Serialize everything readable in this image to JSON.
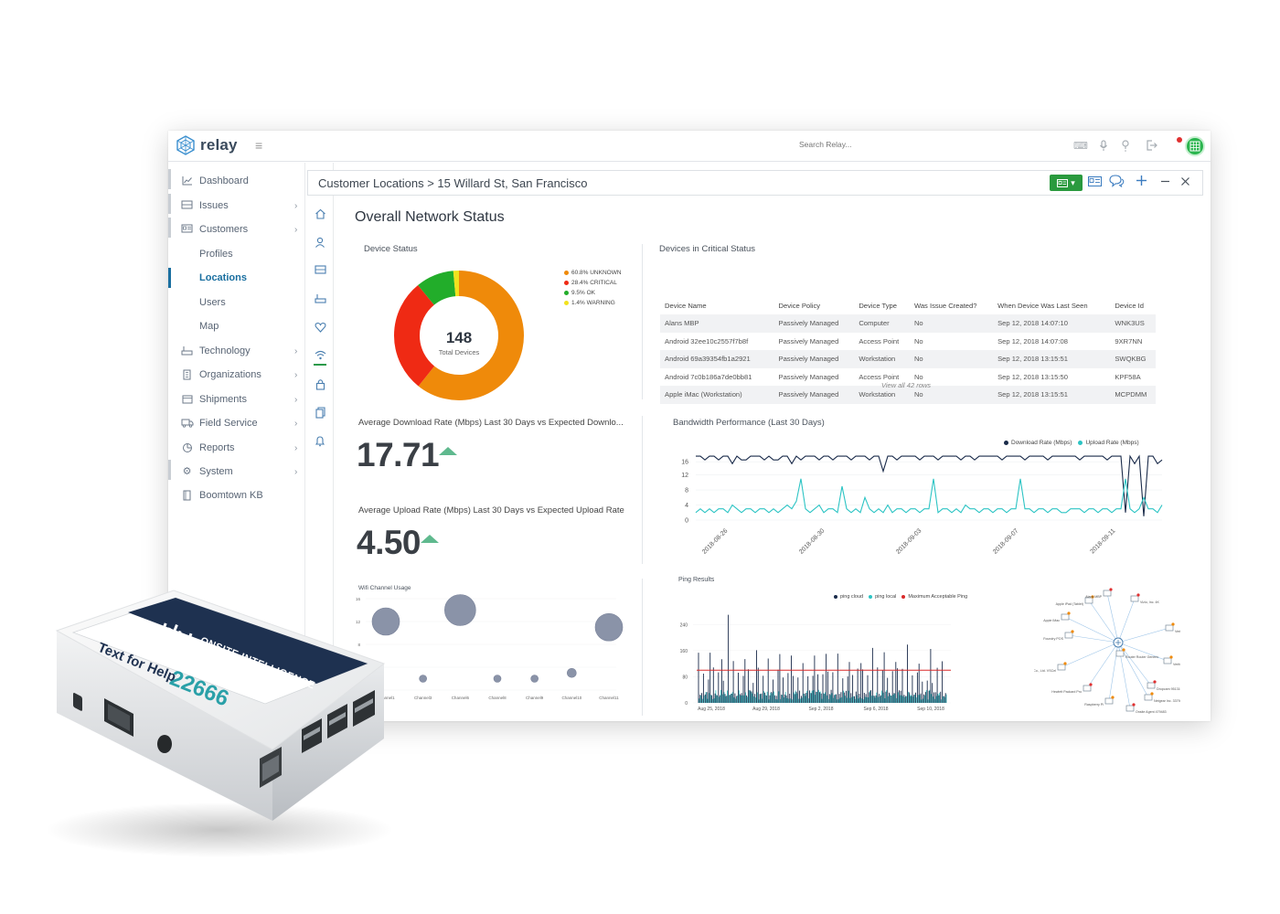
{
  "app": {
    "logo": "relay",
    "search_placeholder": "Search Relay..."
  },
  "sidebar": {
    "items": [
      {
        "label": "Dashboard",
        "icon": "chart-icon"
      },
      {
        "label": "Issues",
        "icon": "ticket-icon"
      },
      {
        "label": "Customers",
        "icon": "id-card-icon"
      },
      {
        "label": "Profiles",
        "icon": ""
      },
      {
        "label": "Locations",
        "icon": ""
      },
      {
        "label": "Users",
        "icon": ""
      },
      {
        "label": "Map",
        "icon": ""
      },
      {
        "label": "Technology",
        "icon": "router-icon"
      },
      {
        "label": "Organizations",
        "icon": "building-icon"
      },
      {
        "label": "Shipments",
        "icon": "box-icon"
      },
      {
        "label": "Field Service",
        "icon": "truck-icon"
      },
      {
        "label": "Reports",
        "icon": "pie-icon"
      },
      {
        "label": "System",
        "icon": "gear-icon"
      },
      {
        "label": "Boomtown KB",
        "icon": "book-icon"
      }
    ]
  },
  "panel": {
    "breadcrumb": "Customer Locations > 15 Willard St, San Francisco",
    "page_title": "Overall Network Status"
  },
  "device_status": {
    "title": "Device Status",
    "total": "148",
    "total_label": "Total Devices",
    "legend": [
      "60.8% UNKNOWN",
      "28.4% CRITICAL",
      "9.5% OK",
      "1.4% WARNING"
    ],
    "colors": {
      "unknown": "#ef8a0a",
      "critical": "#ef2a14",
      "ok": "#22ad2a",
      "warning": "#f2e21e"
    }
  },
  "critical": {
    "title": "Devices in Critical Status",
    "headers": [
      "Device Name",
      "Device Policy",
      "Device Type",
      "Was Issue Created?",
      "When Device Was Last Seen",
      "Device Id"
    ],
    "rows": [
      [
        "Alans MBP",
        "Passively Managed",
        "Computer",
        "No",
        "Sep 12, 2018 14:07:10",
        "WNK3US"
      ],
      [
        "Android 32ee10c2557f7b8f",
        "Passively Managed",
        "Access Point",
        "No",
        "Sep 12, 2018 14:07:08",
        "9XR7NN"
      ],
      [
        "Android 69a39354fb1a2921",
        "Passively Managed",
        "Workstation",
        "No",
        "Sep 12, 2018 13:15:51",
        "SWQKBG"
      ],
      [
        "Android 7c0b186a7de0bb81",
        "Passively Managed",
        "Access Point",
        "No",
        "Sep 12, 2018 13:15:50",
        "KPF58A"
      ],
      [
        "Apple iMac (Workstation)",
        "Passively Managed",
        "Workstation",
        "No",
        "Sep 12, 2018 13:15:51",
        "MCPDMM"
      ]
    ],
    "view_all": "View all 42 rows"
  },
  "download": {
    "title": "Average Download Rate (Mbps) Last 30 Days vs Expected Downlo...",
    "value": "17.71"
  },
  "upload": {
    "title": "Average Upload Rate (Mbps) Last 30 Days vs Expected Upload Rate",
    "value": "4.50"
  },
  "bandwidth": {
    "title": "Bandwidth Performance (Last 30 Days)",
    "legend": [
      "Download Rate (Mbps)",
      "Upload Rate (Mbps)"
    ]
  },
  "wifi": {
    "title": "Wifi Channel Usage"
  },
  "ping": {
    "title": "Ping Results",
    "legend": [
      "ping cloud",
      "ping local",
      "Maximum Acceptable Ping"
    ]
  },
  "topology": {
    "labels": [
      "Apple iPad (Tablet)",
      "Vizio, Inc. 4K",
      "Verifone Carbon 10",
      "Verifone VX520",
      "Dropcam 951316",
      "Foundry POS",
      "Hon Hai Precision Ind. Co., Ltd. VSCel",
      "Hewlett Packard Pro",
      "Raspberry Pi",
      "Router Router Generic",
      "Onsite Agent 479483",
      "Netgear Inc. 337986",
      "Apple iMac",
      "Alans MBP"
    ]
  },
  "hardware": {
    "brand": "ONSITE INTELLIGENCE",
    "sticker_text": "Text for Help",
    "sticker_number": "22666"
  },
  "chart_data": [
    {
      "type": "pie",
      "title": "Device Status",
      "categories": [
        "UNKNOWN",
        "CRITICAL",
        "OK",
        "WARNING"
      ],
      "values": [
        60.8,
        28.4,
        9.5,
        1.4
      ],
      "colors": [
        "#ef8a0a",
        "#ef2a14",
        "#22ad2a",
        "#f2e21e"
      ],
      "center_value": 148
    },
    {
      "type": "line",
      "title": "Bandwidth Performance (Last 30 Days)",
      "x_ticks": [
        "2018-08-26",
        "2018-08-30",
        "2018-09-03",
        "2018-09-07",
        "2018-09-11"
      ],
      "y_ticks": [
        0,
        4,
        8,
        12,
        16
      ],
      "ylim": [
        0,
        18
      ],
      "legend": "top-right",
      "series": [
        {
          "name": "Download Rate (Mbps)",
          "color": "#1a2b4a",
          "values": [
            17,
            17,
            16,
            17,
            17,
            16,
            17,
            17,
            15,
            17,
            16,
            16,
            17,
            17,
            17,
            16,
            17,
            16,
            16,
            17,
            17,
            15,
            17,
            16,
            17,
            17,
            17,
            16,
            17,
            17,
            16,
            17,
            17,
            17,
            16,
            17,
            17,
            17,
            16,
            17,
            17,
            13,
            17,
            17,
            16,
            17,
            17,
            17,
            17,
            16,
            17,
            17,
            17,
            16,
            17,
            17,
            17,
            17,
            16,
            17,
            17,
            16,
            17,
            17,
            17,
            17,
            17,
            16,
            17,
            17,
            17,
            17,
            16,
            17,
            17,
            17,
            17,
            16,
            17,
            17,
            17,
            17,
            17,
            17,
            16,
            17,
            17,
            17,
            17,
            17,
            16,
            17,
            17,
            17,
            2,
            17,
            15,
            17,
            1,
            17,
            17,
            15,
            16
          ]
        },
        {
          "name": "Upload Rate (Mbps)",
          "color": "#2cc4c4",
          "values": [
            2,
            3,
            2,
            3,
            2,
            3,
            3,
            2,
            4,
            3,
            2,
            3,
            3,
            2,
            3,
            3,
            2,
            3,
            2,
            3,
            4,
            3,
            5,
            11,
            3,
            2,
            3,
            4,
            2,
            3,
            3,
            2,
            9,
            3,
            2,
            3,
            2,
            6,
            3,
            2,
            3,
            2,
            4,
            2,
            3,
            3,
            2,
            3,
            3,
            2,
            3,
            3,
            11,
            2,
            3,
            3,
            2,
            3,
            2,
            4,
            3,
            3,
            2,
            3,
            3,
            2,
            3,
            3,
            2,
            3,
            3,
            11,
            3,
            3,
            2,
            3,
            3,
            2,
            3,
            3,
            2,
            2,
            3,
            3,
            3,
            2,
            3,
            3,
            2,
            3,
            3,
            2,
            3,
            3,
            11,
            3,
            2,
            3,
            6,
            3,
            3,
            2,
            4
          ]
        }
      ]
    },
    {
      "type": "scatter",
      "title": "Wifi Channel Usage",
      "categories": [
        "Channel1",
        "Channel3",
        "Channel6",
        "Channel8",
        "Channel9",
        "Channel10",
        "Channel11"
      ],
      "values": [
        12,
        2,
        14,
        2,
        2,
        3,
        11
      ],
      "bubble_size": [
        30,
        8,
        34,
        8,
        8,
        10,
        30
      ],
      "y_ticks": [
        0,
        4,
        8,
        12,
        16
      ]
    },
    {
      "type": "line",
      "title": "Ping Results",
      "x_ticks": [
        "Aug 25, 2018",
        "Aug 29, 2018",
        "Sep 2, 2018",
        "Sep 6, 2018",
        "Sep 10, 2018"
      ],
      "y_ticks": [
        0,
        80,
        160,
        240
      ],
      "series": [
        {
          "name": "ping cloud",
          "color": "#1a2b4a"
        },
        {
          "name": "ping local",
          "color": "#2cc4c4"
        },
        {
          "name": "Maximum Acceptable Ping",
          "color": "#d92a2a",
          "values": [
            100
          ]
        }
      ]
    }
  ]
}
